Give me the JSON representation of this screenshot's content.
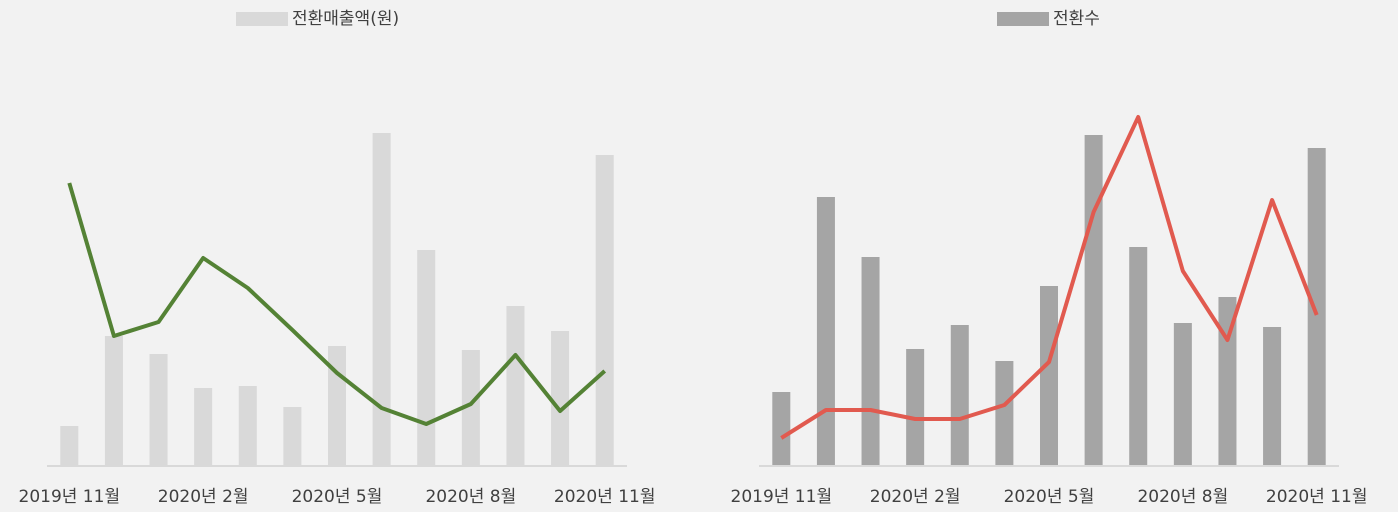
{
  "chart_data": [
    {
      "type": "bar-line",
      "categories": [
        "2019년 11월",
        null,
        null,
        "2020년 2월",
        null,
        null,
        "2020년 5월",
        null,
        null,
        "2020년 8월",
        null,
        null,
        "2020년 11월"
      ],
      "series": [
        {
          "name": "전환매출액(원)",
          "color": "#d9d9d9",
          "type": "bar",
          "values": [
            40,
            130,
            112,
            78,
            80,
            59,
            120,
            333,
            216,
            116,
            160,
            135,
            311
          ]
        },
        {
          "color": "#548235",
          "type": "line",
          "values": [
            283,
            130,
            144,
            208,
            178,
            136,
            93,
            58,
            42,
            62,
            111,
            55,
            95
          ]
        }
      ],
      "ylim": [
        0,
        360
      ]
    },
    {
      "type": "bar-line",
      "categories": [
        "2019년 11월",
        null,
        null,
        "2020년 2월",
        null,
        null,
        "2020년 5월",
        null,
        null,
        "2020년 8월",
        null,
        null,
        "2020년 11월"
      ],
      "series": [
        {
          "name": "전환수",
          "color": "#a5a5a5",
          "type": "bar",
          "values": [
            74,
            269,
            209,
            117,
            141,
            105,
            180,
            331,
            219,
            143,
            169,
            139,
            318
          ]
        },
        {
          "color": "#e15a4f",
          "type": "line",
          "values": [
            28,
            56,
            56,
            47,
            47,
            61,
            104,
            254,
            349,
            195,
            126,
            266,
            151
          ]
        }
      ],
      "ylim": [
        0,
        360
      ]
    }
  ]
}
